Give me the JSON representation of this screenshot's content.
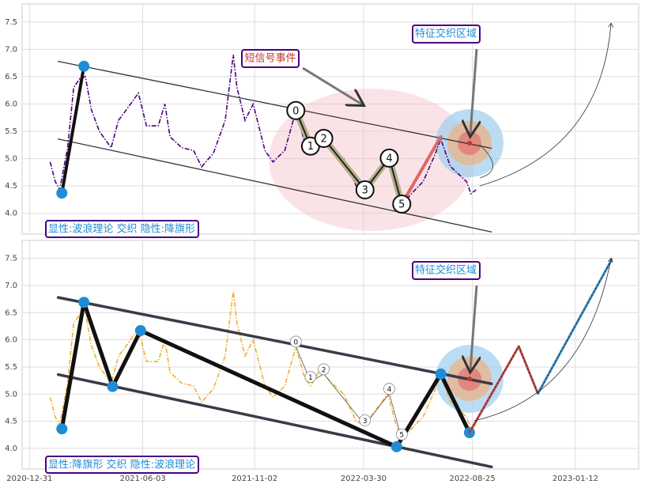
{
  "chart_data": [
    {
      "type": "line",
      "x": [
        "2021-01-28",
        "2021-02-04",
        "2021-02-10",
        "2021-02-21",
        "2021-03-01",
        "2021-03-09",
        "2021-03-17",
        "2021-03-25",
        "2021-04-05",
        "2021-04-21",
        "2021-05-01",
        "2021-05-12",
        "2021-05-28",
        "2021-06-08",
        "2021-06-24",
        "2021-07-03",
        "2021-07-10",
        "2021-07-26",
        "2021-08-11",
        "2021-08-22",
        "2021-09-07",
        "2021-09-23",
        "2021-10-04",
        "2021-10-09",
        "2021-10-20",
        "2021-10-31",
        "2021-11-16",
        "2021-11-27",
        "2021-12-13",
        "2021-12-28",
        "2022-01-09",
        "2022-01-17",
        "2022-01-30",
        "2022-02-15",
        "2022-03-03",
        "2022-03-20",
        "2022-04-01",
        "2022-04-15",
        "2022-05-02",
        "2022-05-12",
        "2022-05-21",
        "2022-06-03",
        "2022-06-19",
        "2022-07-05",
        "2022-07-13",
        "2022-07-26",
        "2022-08-06",
        "2022-08-17",
        "2022-08-23",
        "2022-08-30"
      ],
      "series": [
        {
          "color": "#4b0082",
          "values": [
            4.94,
            4.58,
            4.43,
            5.22,
            6.3,
            6.46,
            6.5,
            5.9,
            5.5,
            5.2,
            5.7,
            5.9,
            6.2,
            5.6,
            5.6,
            6.0,
            5.4,
            5.2,
            5.15,
            4.85,
            5.1,
            5.7,
            6.9,
            6.3,
            5.7,
            6.0,
            5.15,
            4.94,
            5.15,
            5.87,
            5.3,
            5.15,
            5.45,
            5.2,
            5.0,
            4.5,
            4.43,
            4.7,
            5.0,
            4.5,
            4.14,
            4.36,
            4.58,
            5.07,
            5.36,
            4.86,
            4.72,
            4.58,
            4.36,
            4.43
          ]
        }
      ],
      "xlim": [
        "2020-12-21",
        "2023-04-08"
      ],
      "ylim": [
        3.62,
        7.83
      ],
      "yticks": [
        {
          "value": 4,
          "label": "4.0"
        },
        4.5,
        {
          "value": 5,
          "label": "5.0"
        },
        5.5,
        {
          "value": 6,
          "label": "6.0"
        },
        6.5,
        {
          "value": 7,
          "label": "7.0"
        },
        7.5
      ],
      "grid": true,
      "lines": [
        {
          "color": "#333333",
          "x": [
            "2021-02-08",
            "2022-09-20"
          ],
          "values": [
            6.78,
            5.19
          ]
        },
        {
          "color": "#333333",
          "x": [
            "2021-02-08",
            "2022-09-20"
          ],
          "values": [
            5.36,
            3.66
          ]
        },
        {
          "color": "#111111",
          "x": [
            "2021-02-13",
            "2021-03-15"
          ],
          "values": [
            4.37,
            6.69
          ],
          "marker_color": "#1f8dd6"
        },
        {
          "color": "#e06666",
          "x": [
            "2022-05-21",
            "2022-07-13"
          ],
          "values": [
            4.17,
            5.4
          ]
        }
      ],
      "wave": {
        "color": "#b5b08a",
        "labels": [
          "0",
          "1",
          "2",
          "3",
          "4",
          "5"
        ],
        "x": [
          "2021-12-28",
          "2022-01-17",
          "2022-02-04",
          "2022-04-01",
          "2022-05-04",
          "2022-05-21"
        ],
        "values": [
          5.88,
          5.23,
          5.37,
          4.43,
          5.01,
          4.17
        ]
      },
      "annotations": [
        "短信号事件",
        "特征交织区域"
      ],
      "caption": "显性:波浪理论 交织 隐性:降旗形"
    },
    {
      "type": "line",
      "x": [
        "2021-01-28",
        "2021-02-04",
        "2021-02-10",
        "2021-02-21",
        "2021-03-01",
        "2021-03-09",
        "2021-03-17",
        "2021-03-25",
        "2021-04-05",
        "2021-04-21",
        "2021-05-01",
        "2021-05-12",
        "2021-05-28",
        "2021-06-08",
        "2021-06-24",
        "2021-07-03",
        "2021-07-10",
        "2021-07-26",
        "2021-08-11",
        "2021-08-22",
        "2021-09-07",
        "2021-09-23",
        "2021-10-04",
        "2021-10-09",
        "2021-10-20",
        "2021-10-31",
        "2021-11-16",
        "2021-11-27",
        "2021-12-13",
        "2021-12-28",
        "2022-01-09",
        "2022-01-17",
        "2022-01-30",
        "2022-02-15",
        "2022-03-03",
        "2022-03-20",
        "2022-04-01",
        "2022-04-15",
        "2022-05-02",
        "2022-05-12",
        "2022-05-21",
        "2022-06-03",
        "2022-06-19",
        "2022-07-05",
        "2022-07-13",
        "2022-07-26",
        "2022-08-06",
        "2022-08-17",
        "2022-08-23",
        "2022-08-30"
      ],
      "series": [
        {
          "color": "#f0b030",
          "values": [
            4.94,
            4.58,
            4.43,
            5.22,
            6.3,
            6.46,
            6.5,
            5.9,
            5.5,
            5.2,
            5.7,
            5.9,
            6.2,
            5.6,
            5.6,
            6.0,
            5.4,
            5.2,
            5.15,
            4.85,
            5.1,
            5.7,
            6.9,
            6.3,
            5.7,
            6.0,
            5.15,
            4.94,
            5.15,
            5.87,
            5.3,
            5.15,
            5.45,
            5.2,
            5.0,
            4.5,
            4.43,
            4.7,
            5.0,
            4.5,
            4.14,
            4.36,
            4.58,
            5.07,
            5.36,
            4.86,
            4.72,
            4.58,
            4.36,
            4.43
          ]
        }
      ],
      "xlim": [
        "2020-12-21",
        "2023-04-08"
      ],
      "ylim": [
        3.62,
        7.83
      ],
      "xticks": [
        "2020-12-31",
        "2021-06-03",
        "2021-11-02",
        "2022-03-30",
        "2022-08-25",
        "2023-01-12"
      ],
      "yticks": [
        {
          "value": 4,
          "label": "4.0"
        },
        4.5,
        {
          "value": 5,
          "label": "5.0"
        },
        5.5,
        {
          "value": 6,
          "label": "6.0"
        },
        6.5,
        {
          "value": 7,
          "label": "7.0"
        },
        7.5
      ],
      "grid": true,
      "lines": [
        {
          "color": "#3a3a48",
          "x": [
            "2021-02-08",
            "2022-09-20"
          ],
          "values": [
            6.78,
            5.19
          ]
        },
        {
          "color": "#3a3a48",
          "x": [
            "2021-02-08",
            "2022-09-20"
          ],
          "values": [
            5.36,
            3.66
          ]
        },
        {
          "color": "#111111",
          "x": [
            "2021-02-13",
            "2021-03-15",
            "2021-04-23",
            "2021-05-31",
            "2022-05-14",
            "2022-07-13",
            "2022-08-21"
          ],
          "values": [
            4.36,
            6.69,
            5.14,
            6.17,
            4.03,
            5.37,
            4.29
          ],
          "marker_color": "#1f8dd6"
        },
        {
          "color": "#c0504d",
          "x": [
            "2022-08-21",
            "2022-10-27",
            "2022-11-22"
          ],
          "values": [
            4.29,
            5.88,
            5.01
          ]
        },
        {
          "color": "#3d8fc4",
          "x": [
            "2022-11-22",
            "2023-03-02"
          ],
          "values": [
            5.01,
            7.47
          ]
        }
      ],
      "wave": {
        "color": "#555555",
        "labels": [
          "0",
          "1",
          "2",
          "3",
          "4",
          "5"
        ],
        "x": [
          "2021-12-28",
          "2022-01-17",
          "2022-02-04",
          "2022-04-01",
          "2022-05-04",
          "2022-05-21"
        ],
        "values": [
          5.88,
          5.23,
          5.37,
          4.43,
          5.01,
          4.17
        ]
      },
      "annotations": [
        "特征交织区域"
      ],
      "caption": "显性:降旗形 交织 隐性:波浪理论"
    }
  ]
}
